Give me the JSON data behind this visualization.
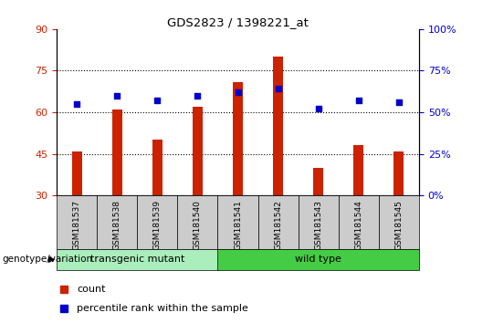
{
  "title": "GDS2823 / 1398221_at",
  "samples": [
    "GSM181537",
    "GSM181538",
    "GSM181539",
    "GSM181540",
    "GSM181541",
    "GSM181542",
    "GSM181543",
    "GSM181544",
    "GSM181545"
  ],
  "counts": [
    46,
    61,
    50,
    62,
    71,
    80,
    40,
    48,
    46
  ],
  "percentile_ranks": [
    55,
    60,
    57,
    60,
    62,
    64,
    52,
    57,
    56
  ],
  "ylim_left": [
    30,
    90
  ],
  "ylim_right": [
    0,
    100
  ],
  "yticks_left": [
    30,
    45,
    60,
    75,
    90
  ],
  "yticks_right": [
    0,
    25,
    50,
    75,
    100
  ],
  "bar_color": "#cc2200",
  "dot_color": "#0000cc",
  "grid_color": "#000000",
  "transgenic_color": "#aaeebb",
  "wildtype_color": "#44cc44",
  "label_bg_color": "#cccccc",
  "transgenic_samples": [
    0,
    1,
    2,
    3
  ],
  "wildtype_samples": [
    4,
    5,
    6,
    7,
    8
  ],
  "transgenic_label": "transgenic mutant",
  "wildtype_label": "wild type",
  "genotype_label": "genotype/variation",
  "legend_count": "count",
  "legend_percentile": "percentile rank within the sample",
  "bar_width": 0.25,
  "dot_size": 25
}
